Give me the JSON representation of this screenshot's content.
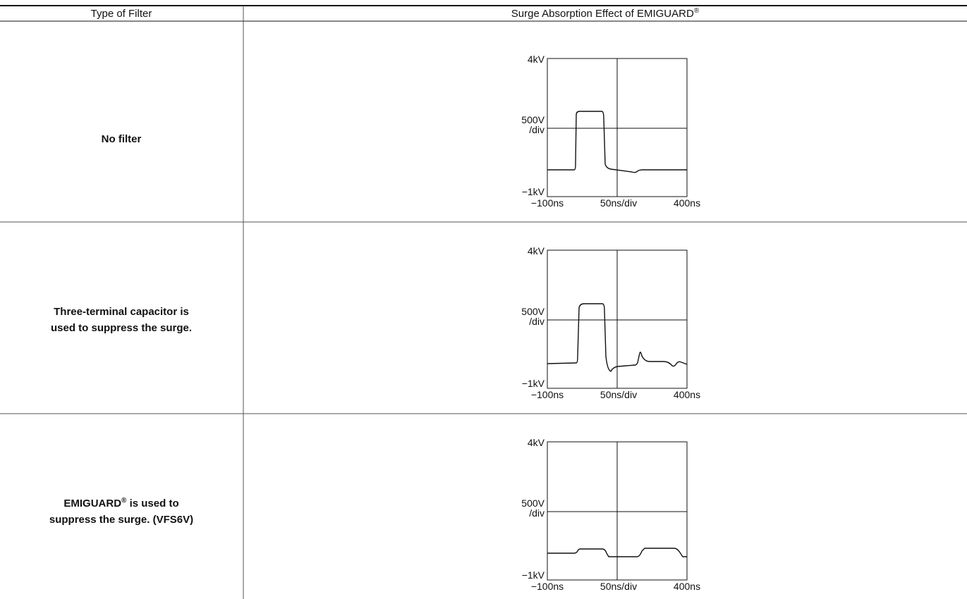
{
  "table": {
    "header": [
      "Type of Filter",
      {
        "text": "Surge Absorption Effect of EMIGUARD",
        "sup": "®"
      }
    ],
    "rows": [
      {
        "label": [
          [
            "No filter"
          ]
        ],
        "plot": {
          "ymax": "4kV",
          "ydiv": [
            "500V",
            "/div"
          ],
          "ymin": "−1kV",
          "xmin": "−100ns",
          "xdiv": "50ns/div",
          "xmax": "400ns"
        }
      },
      {
        "label": [
          [
            "Three-terminal capacitor is"
          ],
          [
            "used to suppress the surge."
          ]
        ],
        "plot": {
          "ymax": "4kV",
          "ydiv": [
            "500V",
            "/div"
          ],
          "ymin": "−1kV",
          "xmin": "−100ns",
          "xdiv": "50ns/div",
          "xmax": "400ns"
        }
      },
      {
        "label": [
          [
            "EMIGUARD",
            "®",
            " is used to"
          ],
          [
            "suppress the surge. (VFS6V)"
          ]
        ],
        "plot": {
          "ymax": "4kV",
          "ydiv": [
            "500V",
            "/div"
          ],
          "ymin": "−1kV",
          "xmin": "−100ns",
          "xdiv": "50ns/div",
          "xmax": "400ns"
        }
      }
    ]
  }
}
